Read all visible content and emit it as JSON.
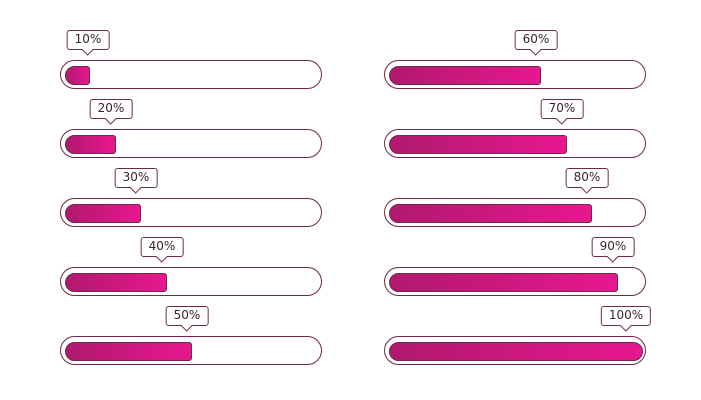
{
  "progress_bars": {
    "left": [
      {
        "label": "10%",
        "value": 10
      },
      {
        "label": "20%",
        "value": 20
      },
      {
        "label": "30%",
        "value": 30
      },
      {
        "label": "40%",
        "value": 40
      },
      {
        "label": "50%",
        "value": 50
      }
    ],
    "right": [
      {
        "label": "60%",
        "value": 60
      },
      {
        "label": "70%",
        "value": 70
      },
      {
        "label": "80%",
        "value": 80
      },
      {
        "label": "90%",
        "value": 90
      },
      {
        "label": "100%",
        "value": 100
      }
    ]
  },
  "colors": {
    "fill_start": "#b0196e",
    "fill_end": "#e8178f",
    "outline": "#6e2a4a"
  }
}
